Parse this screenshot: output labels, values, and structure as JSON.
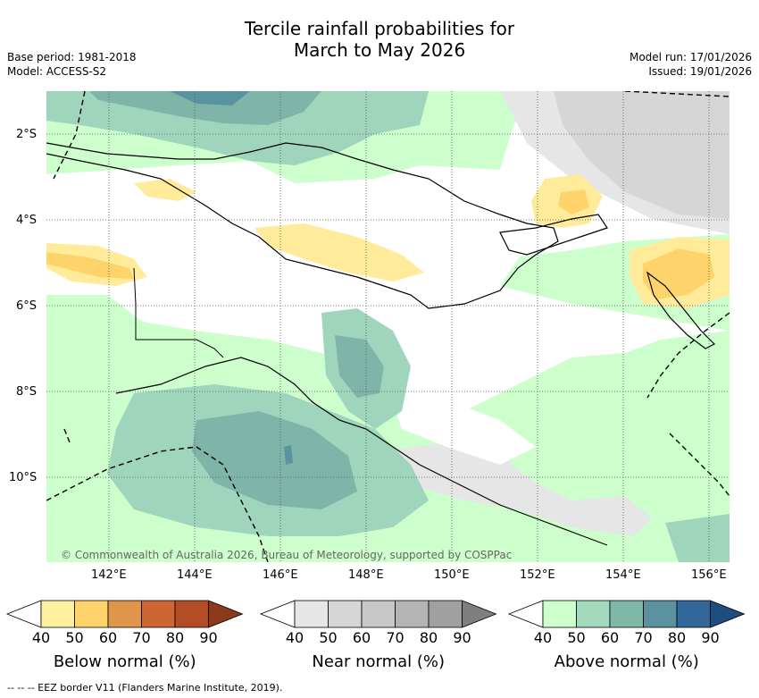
{
  "header": {
    "title_line1": "Tercile rainfall probabilities for",
    "title_line2": "March to May 2026",
    "base_period": "Base period: 1981-2018",
    "model": "Model: ACCESS-S2",
    "model_run": "Model run: 17/01/2026",
    "issued": "Issued: 19/01/2026"
  },
  "map": {
    "lat_labels": [
      "2°S",
      "4°S",
      "6°S",
      "8°S",
      "10°S"
    ],
    "lon_labels": [
      "142°E",
      "144°E",
      "146°E",
      "148°E",
      "150°E",
      "152°E",
      "154°E",
      "156°E"
    ],
    "copyright": "© Commonwealth of Australia 2026, Bureau of Meteorology, supported by COSPPac",
    "colors": {
      "land_white": "#ffffff",
      "below_40": "#ffeb99",
      "below_50": "#ffd36b",
      "near_40": "#e6e6e6",
      "near_50": "#d6d6d6",
      "above_40": "#ccffcc",
      "above_50": "#9fd4bd",
      "above_60": "#7fb5a8",
      "above_70": "#5a93a0"
    }
  },
  "colorbars": [
    {
      "title": "Below normal (%)",
      "ticks": [
        "40",
        "50",
        "60",
        "70",
        "80",
        "90"
      ],
      "colors": [
        "#ffffff",
        "#fff0a0",
        "#ffd36b",
        "#e0964a",
        "#cc6633",
        "#b34d26",
        "#8c3a1c"
      ]
    },
    {
      "title": "Near normal (%)",
      "ticks": [
        "40",
        "50",
        "60",
        "70",
        "80",
        "90"
      ],
      "colors": [
        "#ffffff",
        "#e6e6e6",
        "#d6d6d6",
        "#c8c8c8",
        "#b4b4b4",
        "#a0a0a0",
        "#7f7f7f"
      ]
    },
    {
      "title": "Above normal (%)",
      "ticks": [
        "40",
        "50",
        "60",
        "70",
        "80",
        "90"
      ],
      "colors": [
        "#ffffff",
        "#ccffcc",
        "#a3d9bd",
        "#80b8a8",
        "#5a92a0",
        "#336699",
        "#1f4d80"
      ]
    }
  ],
  "footer": "--  --  -- EEZ border V11 (Flanders Marine Institute, 2019)."
}
